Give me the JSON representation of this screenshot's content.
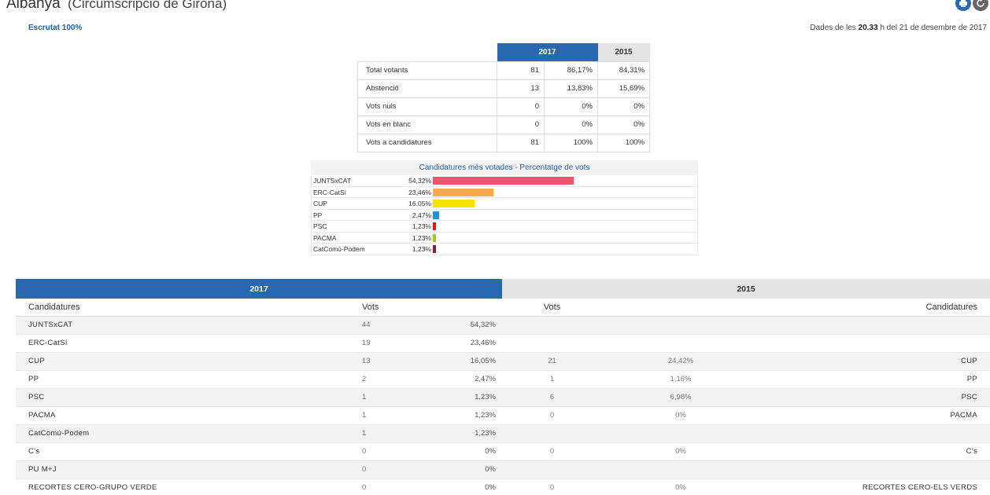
{
  "header": {
    "title": "Albanya",
    "subtitle": "(Circumscripció de Girona)",
    "escrutat": "Escrutat 100%",
    "dades_prefix": "Dades de les ",
    "dades_time": "20.33",
    "dades_suffix": " h del 21 de desembre de 2017"
  },
  "summary": {
    "year_current": "2017",
    "year_previous": "2015",
    "rows": [
      {
        "label": "Total votants",
        "votes": "81",
        "pct": "86,17%",
        "prev": "84,31%"
      },
      {
        "label": "Abstenció",
        "votes": "13",
        "pct": "13,83%",
        "prev": "15,69%"
      },
      {
        "label": "Vots nuls",
        "votes": "0",
        "pct": "0%",
        "prev": "0%"
      },
      {
        "label": "Vots en blanc",
        "votes": "0",
        "pct": "0%",
        "prev": "0%"
      },
      {
        "label": "Vots a candidatures",
        "votes": "81",
        "pct": "100%",
        "prev": "100%"
      }
    ]
  },
  "chart_data": {
    "type": "bar",
    "title": "Candidatures més votades - Percentatge de vots",
    "categories": [
      "JUNTSxCAT",
      "ERC-CatSí",
      "CUP",
      "PP",
      "PSC",
      "PACMA",
      "CatComú-Podem"
    ],
    "values": [
      54.32,
      23.46,
      16.05,
      2.47,
      1.23,
      1.23,
      1.23
    ],
    "labels": [
      "54,32%",
      "23,46%",
      "16,05%",
      "2,47%",
      "1,23%",
      "1,23%",
      "1,23%"
    ],
    "colors": [
      "#e8566f",
      "#f9a94e",
      "#f5e400",
      "#1a98d5",
      "#e5101b",
      "#a7c41f",
      "#8b1a3c"
    ]
  },
  "results": {
    "year_current": "2017",
    "year_previous": "2015",
    "col_candidatures": "Candidatures",
    "col_vots": "Vots",
    "rows": [
      {
        "name": "JUNTSxCAT",
        "v17": "44",
        "p17": "54,32%",
        "v15": "",
        "p15": "",
        "name15": ""
      },
      {
        "name": "ERC-CatSí",
        "v17": "19",
        "p17": "23,46%",
        "v15": "",
        "p15": "",
        "name15": ""
      },
      {
        "name": "CUP",
        "v17": "13",
        "p17": "16,05%",
        "v15": "21",
        "p15": "24,42%",
        "name15": "CUP"
      },
      {
        "name": "PP",
        "v17": "2",
        "p17": "2,47%",
        "v15": "1",
        "p15": "1,16%",
        "name15": "PP"
      },
      {
        "name": "PSC",
        "v17": "1",
        "p17": "1,23%",
        "v15": "6",
        "p15": "6,98%",
        "name15": "PSC"
      },
      {
        "name": "PACMA",
        "v17": "1",
        "p17": "1,23%",
        "v15": "0",
        "p15": "0%",
        "name15": "PACMA"
      },
      {
        "name": "CatComú-Podem",
        "v17": "1",
        "p17": "1,23%",
        "v15": "",
        "p15": "",
        "name15": ""
      },
      {
        "name": "C's",
        "v17": "0",
        "p17": "0%",
        "v15": "0",
        "p15": "0%",
        "name15": "C's"
      },
      {
        "name": "PU M+J",
        "v17": "0",
        "p17": "0%",
        "v15": "",
        "p15": "",
        "name15": ""
      },
      {
        "name": "RECORTES CERO-GRUPO VERDE",
        "v17": "0",
        "p17": "0%",
        "v15": "0",
        "p15": "0%",
        "name15": "RECORTES CERO-ELS VERDS"
      }
    ]
  },
  "icons": {
    "print": "print-icon",
    "refresh": "refresh-icon"
  }
}
